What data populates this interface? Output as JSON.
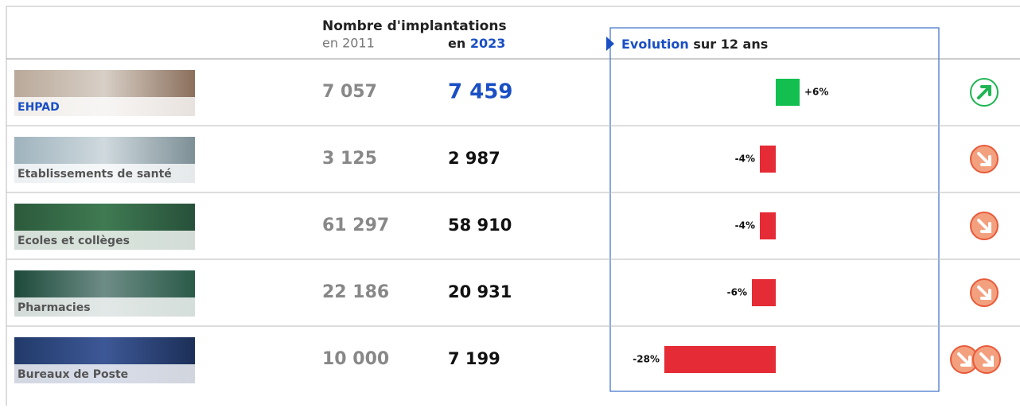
{
  "header": {
    "title": "Nombre d'implantations",
    "col_2011": "en 2011",
    "col_2023_prefix": "en",
    "col_2023_year": "2023",
    "evolution_highlight": "Evolution",
    "evolution_rest": "sur 12 ans"
  },
  "table": {
    "rows": [
      {
        "label": "EHPAD",
        "y2011": "7 057",
        "y2023": "7 459",
        "evolution": {
          "value": 6,
          "label": "+6%"
        }
      },
      {
        "label": "Etablissements de santé",
        "y2011": "3 125",
        "y2023": "2 987",
        "evolution": {
          "value": -4,
          "label": "-4%"
        }
      },
      {
        "label": "Ecoles et collèges",
        "y2011": "61 297",
        "y2023": "58 910",
        "evolution": {
          "value": -4,
          "label": "-4%"
        }
      },
      {
        "label": "Pharmacies",
        "y2011": "22 186",
        "y2023": "20 931",
        "evolution": {
          "value": -6,
          "label": "-6%"
        }
      },
      {
        "label": "Bureaux de Poste",
        "y2011": "10 000",
        "y2023": "7 199",
        "evolution": {
          "value": -28,
          "label": "-28%"
        }
      }
    ]
  }
}
